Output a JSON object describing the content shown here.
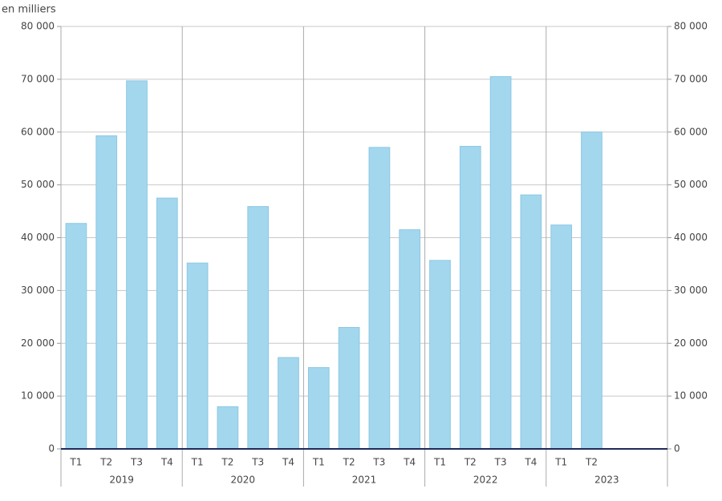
{
  "chart_data": {
    "type": "bar",
    "y_label": "en milliers",
    "categories": [
      "T1",
      "T2",
      "T3",
      "T4",
      "T1",
      "T2",
      "T3",
      "T4",
      "T1",
      "T2",
      "T3",
      "T4",
      "T1",
      "T2",
      "T3",
      "T4",
      "T1",
      "T2",
      null,
      null
    ],
    "groups": [
      "2019",
      "2020",
      "2021",
      "2022",
      "2023"
    ],
    "values": [
      42700,
      59300,
      69700,
      47500,
      35200,
      8000,
      45900,
      17300,
      15400,
      23000,
      57100,
      41500,
      35700,
      57300,
      70500,
      48100,
      42400,
      60000,
      null,
      null
    ],
    "color": "#a3d7ee",
    "ylim": [
      0,
      80000
    ],
    "yticks": [
      0,
      {
        "value": 10000,
        "label": "10 000"
      },
      {
        "value": 20000,
        "label": "20 000"
      },
      {
        "value": 30000,
        "label": "30 000"
      },
      {
        "value": 40000,
        "label": "40 000"
      },
      {
        "value": 50000,
        "label": "50 000"
      },
      {
        "value": 60000,
        "label": "60 000"
      },
      {
        "value": 70000,
        "label": "70 000"
      },
      {
        "value": 80000,
        "label": "80 000"
      }
    ],
    "y2lim": [
      0,
      80000
    ],
    "y2ticks": [
      0,
      {
        "value": 10000,
        "label": "10 000"
      },
      {
        "value": 20000,
        "label": "20 000"
      },
      {
        "value": 30000,
        "label": "30 000"
      },
      {
        "value": 40000,
        "label": "40 000"
      },
      {
        "value": 50000,
        "label": "50 000"
      },
      {
        "value": 60000,
        "label": "60 000"
      },
      {
        "value": 70000,
        "label": "70 000"
      },
      {
        "value": 80000,
        "label": "80 000"
      }
    ],
    "grid": true
  }
}
